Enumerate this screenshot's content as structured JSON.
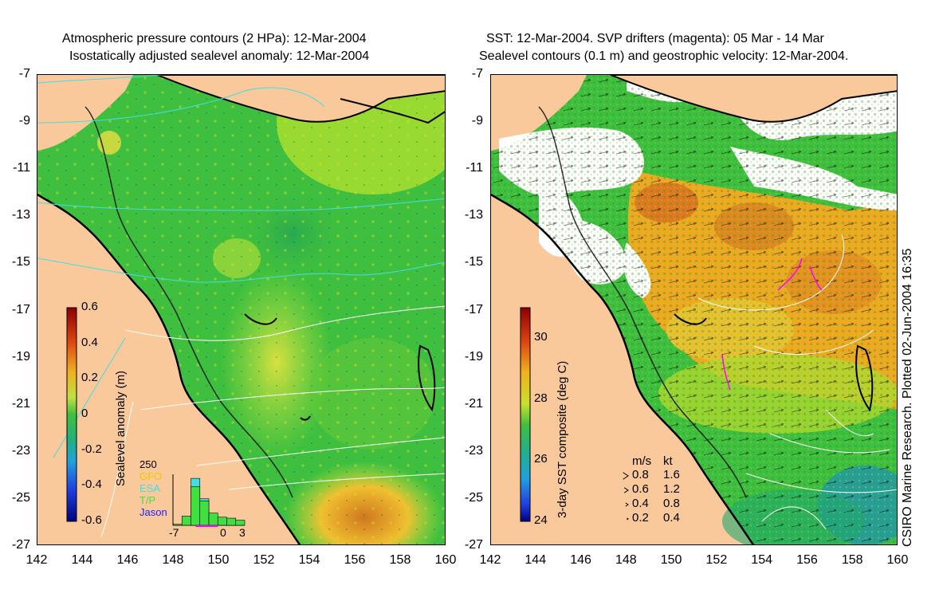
{
  "left_panel": {
    "title_line1": "Atmospheric pressure contours (2 HPa): 12-Mar-2004",
    "title_line2": "Isostatically adjusted sealevel anomaly: 12-Mar-2004",
    "colorbar": {
      "label": "Sealevel anomaly (m)",
      "ticks": [
        "0.6",
        "0.4",
        "0.2",
        "0",
        "-0.2",
        "-0.4",
        "-0.6"
      ],
      "range": [
        -0.6,
        0.6
      ]
    },
    "legend": {
      "count_label": "250",
      "satellites": [
        {
          "name": "GFO",
          "color": "#f0c800"
        },
        {
          "name": "ESA",
          "color": "#40e0e0"
        },
        {
          "name": "T/P",
          "color": "#40e040"
        },
        {
          "name": "Jason",
          "color": "#2020ff"
        }
      ],
      "hist_axis": [
        "-7",
        "0",
        "3"
      ],
      "hist_counts": [
        5,
        45,
        190,
        120,
        60,
        40,
        35,
        25
      ],
      "hist_cyan": [
        0,
        0,
        230,
        130,
        0,
        0,
        0,
        0
      ]
    }
  },
  "right_panel": {
    "title_line1": "SST: 12-Mar-2004. SVP drifters (magenta): 05 Mar - 14 Mar",
    "title_line2": "Sealevel contours (0.1 m) and geostrophic velocity: 12-Mar-2004.",
    "colorbar": {
      "label": "3-day SST composite (deg C)",
      "ticks": [
        "30",
        "28",
        "26",
        "24"
      ],
      "range": [
        24,
        31
      ]
    },
    "velocity_legend": {
      "header_ms": "m/s",
      "header_kt": "kt",
      "rows": [
        {
          "ms": "0.8",
          "kt": "1.6"
        },
        {
          "ms": "0.6",
          "kt": "1.2"
        },
        {
          "ms": "0.4",
          "kt": "0.8"
        },
        {
          "ms": "0.2",
          "kt": "0.4"
        }
      ]
    }
  },
  "axes": {
    "y_ticks": [
      "-7",
      "-9",
      "-11",
      "-13",
      "-15",
      "-17",
      "-19",
      "-21",
      "-23",
      "-25",
      "-27"
    ],
    "x_ticks": [
      "142",
      "144",
      "146",
      "148",
      "150",
      "152",
      "154",
      "156",
      "158",
      "160"
    ],
    "lon_range": [
      142,
      160
    ],
    "lat_range": [
      -27,
      -7
    ]
  },
  "side_note": "CSIRO Marine Research. Plotted 02-Jun-2004 16:35",
  "colors": {
    "land": "#f9c89b",
    "sea_green": "#3fbf3f",
    "sea_light": "#9fdf3f",
    "sea_warm": "#f0b020",
    "sst_orange": "#f0a020",
    "sst_cloud": "#ffffff"
  }
}
